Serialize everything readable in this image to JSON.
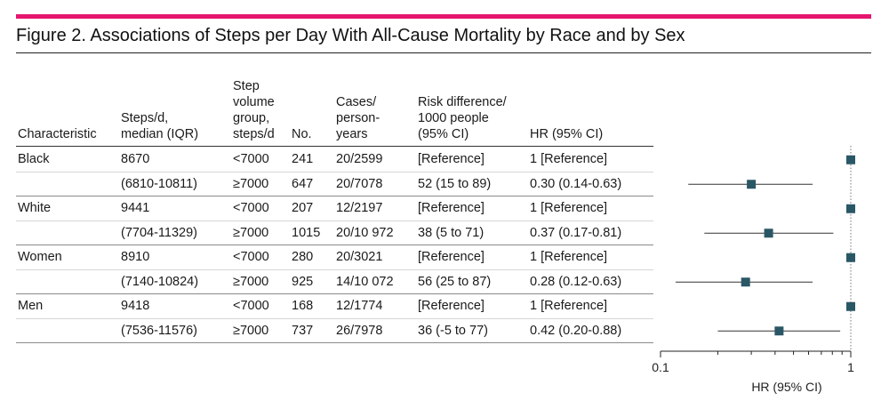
{
  "figure": {
    "title": "Figure 2. Associations of Steps per Day With All-Cause Mortality by Race and by Sex"
  },
  "table": {
    "headers": {
      "characteristic": [
        "Characteristic"
      ],
      "steps": [
        "Steps/d,",
        "median (IQR)"
      ],
      "group": [
        "Step",
        "volume",
        "group,",
        "steps/d"
      ],
      "no": [
        "No."
      ],
      "cases": [
        "Cases/",
        "person-",
        "years"
      ],
      "risk": [
        "Risk difference/",
        "1000 people",
        "(95% CI)"
      ],
      "hr": [
        "HR (95% CI)"
      ]
    },
    "groups": [
      {
        "characteristic": "Black",
        "rows": [
          {
            "steps": "8670",
            "group": "<7000",
            "no": "241",
            "cases": "20/2599",
            "risk": "[Reference]",
            "hr": "1 [Reference]"
          },
          {
            "steps": "(6810-10811)",
            "group": "≥7000",
            "no": "647",
            "cases": "20/7078",
            "risk": "52 (15 to 89)",
            "hr": "0.30 (0.14-0.63)"
          }
        ]
      },
      {
        "characteristic": "White",
        "rows": [
          {
            "steps": "9441",
            "group": "<7000",
            "no": "207",
            "cases": "12/2197",
            "risk": "[Reference]",
            "hr": "1 [Reference]"
          },
          {
            "steps": "(7704-11329)",
            "group": "≥7000",
            "no": "1015",
            "cases": "20/10 972",
            "risk": "38 (5 to 71)",
            "hr": "0.37 (0.17-0.81)"
          }
        ]
      },
      {
        "characteristic": "Women",
        "rows": [
          {
            "steps": "8910",
            "group": "<7000",
            "no": "280",
            "cases": "20/3021",
            "risk": "[Reference]",
            "hr": "1 [Reference]"
          },
          {
            "steps": "(7140-10824)",
            "group": "≥7000",
            "no": "925",
            "cases": "14/10 072",
            "risk": "56 (25 to 87)",
            "hr": "0.28 (0.12-0.63)"
          }
        ]
      },
      {
        "characteristic": "Men",
        "rows": [
          {
            "steps": "9418",
            "group": "<7000",
            "no": "168",
            "cases": "12/1774",
            "risk": "[Reference]",
            "hr": "1 [Reference]"
          },
          {
            "steps": "(7536-11576)",
            "group": "≥7000",
            "no": "737",
            "cases": "26/7978",
            "risk": "36 (-5 to 77)",
            "hr": "0.42 (0.20-0.88)"
          }
        ]
      }
    ]
  },
  "colors": {
    "accent_rule": "#e5176f",
    "marker": "#2a5766",
    "stripe": "#ffffff"
  },
  "chart_data": {
    "type": "scatter",
    "subtype": "forest-plot",
    "xscale": "log",
    "xlim": [
      0.1,
      1
    ],
    "xticks": [
      0.1,
      1
    ],
    "xtick_labels": [
      "0.1",
      "1"
    ],
    "xlabel": "HR (95% CI)",
    "reference_line": 1,
    "points": [
      {
        "hr": 1,
        "lo": null,
        "hi": null
      },
      {
        "hr": 0.3,
        "lo": 0.14,
        "hi": 0.63
      },
      {
        "hr": 1,
        "lo": null,
        "hi": null
      },
      {
        "hr": 0.37,
        "lo": 0.17,
        "hi": 0.81
      },
      {
        "hr": 1,
        "lo": null,
        "hi": null
      },
      {
        "hr": 0.28,
        "lo": 0.12,
        "hi": 0.63
      },
      {
        "hr": 1,
        "lo": null,
        "hi": null
      },
      {
        "hr": 0.42,
        "lo": 0.2,
        "hi": 0.88
      }
    ]
  }
}
